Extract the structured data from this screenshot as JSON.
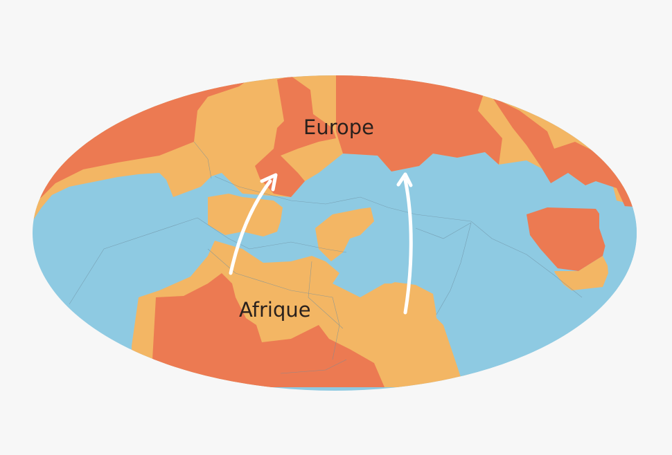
{
  "map": {
    "labels": {
      "europe": "Europe",
      "africa": "Afrique"
    },
    "colors": {
      "background": "#f7f7f7",
      "sea": "#8ecae2",
      "land_orange": "#f3b664",
      "land_red": "#ec7a52",
      "arrow": "#ffffff",
      "text": "#2a211d"
    },
    "arrows": [
      {
        "name": "migration-arrow-west",
        "direction": "north"
      },
      {
        "name": "migration-arrow-east",
        "direction": "north"
      }
    ]
  }
}
